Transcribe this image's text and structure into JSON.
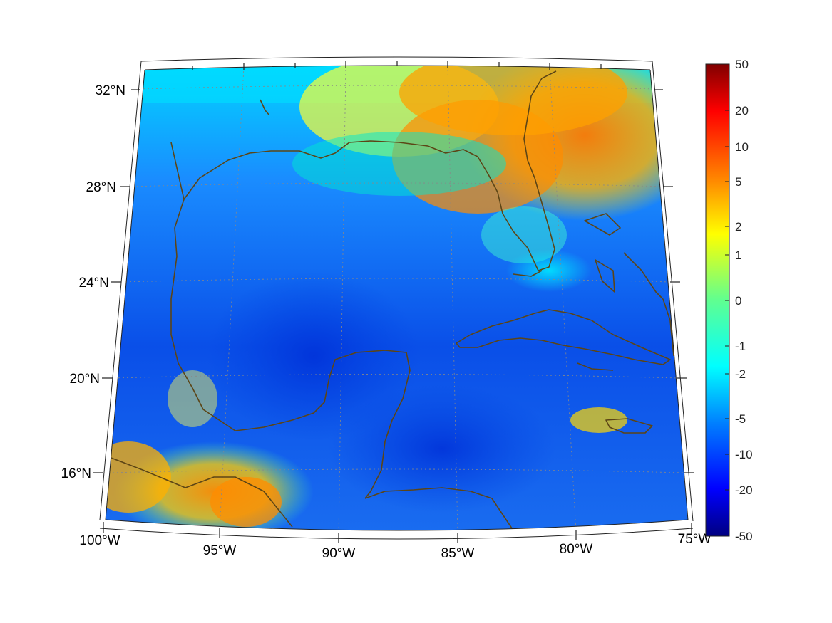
{
  "map": {
    "projection": "conic",
    "extent": {
      "lon_min": -100,
      "lon_max": -75,
      "lat_min": 14.2,
      "lat_max": 33
    },
    "lat_ticks": [
      "32°N",
      "28°N",
      "24°N",
      "20°N",
      "16°N"
    ],
    "lon_ticks": [
      "100°W",
      "95°W",
      "90°W",
      "85°W",
      "80°W",
      "75°W"
    ],
    "coastline_color": "#5c4516",
    "grid": "dotted"
  },
  "colorbar": {
    "labels": [
      "50",
      "20",
      "10",
      "5",
      "2",
      "1",
      "0",
      "-1",
      "-2",
      "-5",
      "-10",
      "-20",
      "-50"
    ],
    "colors": [
      "#800000",
      "#ff0000",
      "#ff8000",
      "#ffff00",
      "#00ff80",
      "#00ffff",
      "#0080ff",
      "#0000ff",
      "#000080"
    ],
    "scale": "nonlinear"
  }
}
